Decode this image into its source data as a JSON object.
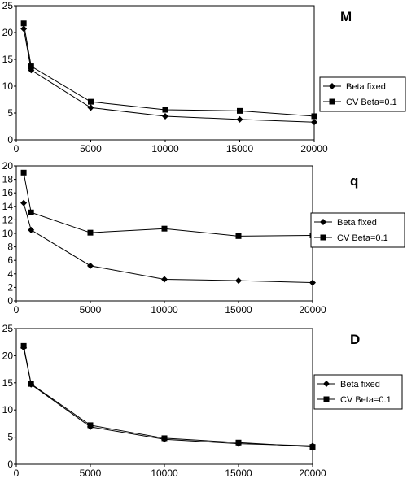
{
  "chart_data": [
    {
      "type": "line",
      "title": "M",
      "x": [
        500,
        1000,
        5000,
        10000,
        15000,
        20000
      ],
      "xticks": [
        "0",
        "5000",
        "10000",
        "15000",
        "20000"
      ],
      "xlim": [
        0,
        20000
      ],
      "ylim": [
        0,
        25
      ],
      "yticks": [
        "0",
        "5",
        "10",
        "15",
        "20",
        "25"
      ],
      "series": [
        {
          "name": "Beta fixed",
          "marker": "diamond",
          "values": [
            20.7,
            13.0,
            6.0,
            4.4,
            3.8,
            3.3
          ]
        },
        {
          "name": "CV Beta=0.1",
          "marker": "square",
          "values": [
            21.7,
            13.7,
            7.1,
            5.6,
            5.4,
            4.4
          ]
        }
      ],
      "legend": "right",
      "grid": false
    },
    {
      "type": "line",
      "title": "q",
      "x": [
        500,
        1000,
        5000,
        10000,
        15000,
        20000
      ],
      "xticks": [
        "0",
        "5000",
        "10000",
        "15000",
        "20000"
      ],
      "xlim": [
        0,
        20000
      ],
      "ylim": [
        0,
        20
      ],
      "yticks": [
        "0",
        "2",
        "4",
        "6",
        "8",
        "10",
        "12",
        "14",
        "16",
        "18",
        "20"
      ],
      "series": [
        {
          "name": "Beta fixed",
          "marker": "diamond",
          "values": [
            14.5,
            10.5,
            5.2,
            3.2,
            3.0,
            2.7
          ]
        },
        {
          "name": "CV Beta=0.1",
          "marker": "square",
          "values": [
            19.0,
            13.1,
            10.1,
            10.7,
            9.6,
            9.7
          ]
        }
      ],
      "legend": "right",
      "grid": false
    },
    {
      "type": "line",
      "title": "D",
      "x": [
        500,
        1000,
        5000,
        10000,
        15000,
        20000
      ],
      "xticks": [
        "0",
        "5000",
        "10000",
        "15000",
        "20000"
      ],
      "xlim": [
        0,
        20000
      ],
      "ylim": [
        0,
        25
      ],
      "yticks": [
        "0",
        "5",
        "10",
        "15",
        "20",
        "25"
      ],
      "series": [
        {
          "name": "Beta fixed",
          "marker": "diamond",
          "values": [
            21.5,
            14.7,
            6.9,
            4.6,
            3.8,
            3.4
          ]
        },
        {
          "name": "CV Beta=0.1",
          "marker": "square",
          "values": [
            21.8,
            14.8,
            7.2,
            4.8,
            4.0,
            3.2
          ]
        }
      ],
      "legend": "right",
      "grid": false
    }
  ]
}
